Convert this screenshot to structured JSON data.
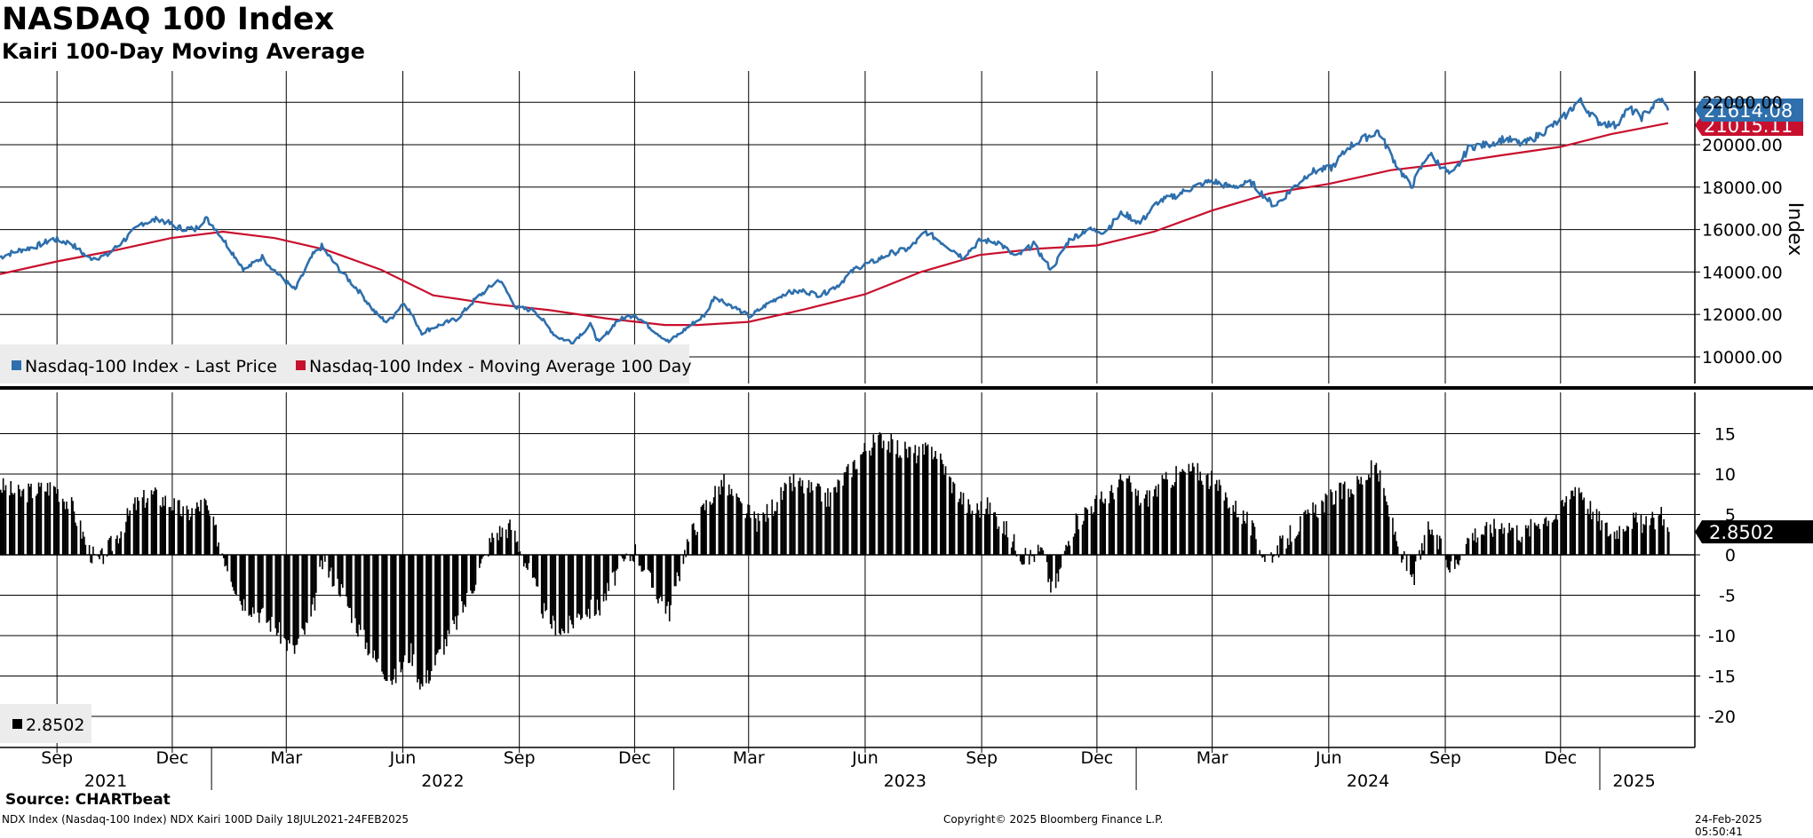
{
  "header": {
    "title": "NASDAQ 100 Index",
    "subtitle": "Kairi 100-Day Moving Average"
  },
  "footer": {
    "source": "Source: CHARTbeat",
    "description": "NDX Index (Nasdaq-100 Index) NDX Kairi 100D  Daily 18JUL2021-24FEB2025",
    "copyright": "Copyright© 2025 Bloomberg Finance L.P.",
    "timestamp": "24-Feb-2025 05:50:41"
  },
  "colors": {
    "price": "#2e6fac",
    "moving_average": "#c8102e",
    "histogram": "#000000",
    "grid": "#000000"
  },
  "chart_data": [
    {
      "type": "line",
      "panel": "upper",
      "ylabel": "Index",
      "ylim": [
        8500,
        22500
      ],
      "y_ticks": [
        "10000.00",
        "12000.00",
        "14000.00",
        "16000.00",
        "18000.00",
        "20000.00",
        "22000.00"
      ],
      "grid": true,
      "legend_placement": "bottom-left",
      "legend": [
        "Nasdaq-100 Index - Last Price",
        "Nasdaq-100 Index - Moving Average 100 Day"
      ],
      "last_value_labels": [
        "21614.08",
        "21015.11"
      ],
      "series": [
        {
          "name": "Nasdaq-100 Index - Last Price",
          "points": [
            [
              "2021-07-18",
              14700
            ],
            [
              "2021-08-01",
              15000
            ],
            [
              "2021-08-15",
              15200
            ],
            [
              "2021-08-29",
              15550
            ],
            [
              "2021-09-12",
              15350
            ],
            [
              "2021-09-26",
              14650
            ],
            [
              "2021-10-10",
              14750
            ],
            [
              "2021-10-24",
              15500
            ],
            [
              "2021-11-07",
              16300
            ],
            [
              "2021-11-21",
              16500
            ],
            [
              "2021-12-05",
              16100
            ],
            [
              "2021-12-19",
              16000
            ],
            [
              "2021-12-27",
              16550
            ],
            [
              "2022-01-05",
              16000
            ],
            [
              "2022-01-20",
              14700
            ],
            [
              "2022-01-27",
              14100
            ],
            [
              "2022-02-10",
              14700
            ],
            [
              "2022-02-24",
              13800
            ],
            [
              "2022-03-08",
              13150
            ],
            [
              "2022-03-22",
              14800
            ],
            [
              "2022-03-29",
              15200
            ],
            [
              "2022-04-12",
              14100
            ],
            [
              "2022-04-26",
              13200
            ],
            [
              "2022-05-10",
              12100
            ],
            [
              "2022-05-20",
              11600
            ],
            [
              "2022-06-02",
              12600
            ],
            [
              "2022-06-16",
              11150
            ],
            [
              "2022-06-30",
              11500
            ],
            [
              "2022-07-14",
              11800
            ],
            [
              "2022-07-28",
              12700
            ],
            [
              "2022-08-16",
              13650
            ],
            [
              "2022-08-30",
              12300
            ],
            [
              "2022-09-13",
              12200
            ],
            [
              "2022-09-30",
              10950
            ],
            [
              "2022-10-13",
              10700
            ],
            [
              "2022-10-27",
              11500
            ],
            [
              "2022-11-03",
              10650
            ],
            [
              "2022-11-17",
              11700
            ],
            [
              "2022-12-01",
              12000
            ],
            [
              "2022-12-15",
              11300
            ],
            [
              "2022-12-28",
              10700
            ],
            [
              "2023-01-12",
              11400
            ],
            [
              "2023-01-26",
              12000
            ],
            [
              "2023-02-02",
              12850
            ],
            [
              "2023-02-16",
              12400
            ],
            [
              "2023-03-02",
              11900
            ],
            [
              "2023-03-16",
              12500
            ],
            [
              "2023-03-30",
              13000
            ],
            [
              "2023-04-13",
              13100
            ],
            [
              "2023-04-27",
              12900
            ],
            [
              "2023-05-11",
              13400
            ],
            [
              "2023-05-25",
              14200
            ],
            [
              "2023-06-08",
              14500
            ],
            [
              "2023-06-22",
              14900
            ],
            [
              "2023-07-06",
              15100
            ],
            [
              "2023-07-19",
              15900
            ],
            [
              "2023-08-03",
              15300
            ],
            [
              "2023-08-17",
              14700
            ],
            [
              "2023-08-31",
              15500
            ],
            [
              "2023-09-14",
              15400
            ],
            [
              "2023-09-28",
              14700
            ],
            [
              "2023-10-12",
              15300
            ],
            [
              "2023-10-26",
              14100
            ],
            [
              "2023-11-09",
              15500
            ],
            [
              "2023-11-23",
              16000
            ],
            [
              "2023-12-07",
              15900
            ],
            [
              "2023-12-21",
              16800
            ],
            [
              "2024-01-04",
              16300
            ],
            [
              "2024-01-18",
              17300
            ],
            [
              "2024-02-01",
              17600
            ],
            [
              "2024-02-15",
              18000
            ],
            [
              "2024-03-01",
              18300
            ],
            [
              "2024-03-15",
              18000
            ],
            [
              "2024-04-01",
              18200
            ],
            [
              "2024-04-19",
              17100
            ],
            [
              "2024-05-03",
              17900
            ],
            [
              "2024-05-17",
              18700
            ],
            [
              "2024-06-03",
              18900
            ],
            [
              "2024-06-17",
              19900
            ],
            [
              "2024-07-10",
              20650
            ],
            [
              "2024-07-25",
              19000
            ],
            [
              "2024-08-05",
              18000
            ],
            [
              "2024-08-19",
              19600
            ],
            [
              "2024-09-06",
              18500
            ],
            [
              "2024-09-20",
              19900
            ],
            [
              "2024-10-04",
              20000
            ],
            [
              "2024-10-18",
              20300
            ],
            [
              "2024-11-01",
              20000
            ],
            [
              "2024-11-15",
              20500
            ],
            [
              "2024-12-02",
              21200
            ],
            [
              "2024-12-16",
              22100
            ],
            [
              "2024-12-30",
              21100
            ],
            [
              "2025-01-13",
              20900
            ],
            [
              "2025-01-24",
              21700
            ],
            [
              "2025-02-03",
              21300
            ],
            [
              "2025-02-18",
              22150
            ],
            [
              "2025-02-24",
              21614
            ]
          ]
        },
        {
          "name": "Nasdaq-100 Index - Moving Average 100 Day",
          "points": [
            [
              "2021-07-18",
              13900
            ],
            [
              "2021-09-01",
              14500
            ],
            [
              "2021-10-15",
              15000
            ],
            [
              "2021-11-30",
              15600
            ],
            [
              "2022-01-10",
              15900
            ],
            [
              "2022-02-20",
              15600
            ],
            [
              "2022-04-01",
              15050
            ],
            [
              "2022-05-15",
              14100
            ],
            [
              "2022-06-25",
              12900
            ],
            [
              "2022-08-10",
              12500
            ],
            [
              "2022-09-25",
              12200
            ],
            [
              "2022-11-10",
              11800
            ],
            [
              "2022-12-25",
              11500
            ],
            [
              "2023-01-20",
              11500
            ],
            [
              "2023-03-01",
              11650
            ],
            [
              "2023-04-15",
              12250
            ],
            [
              "2023-06-01",
              12950
            ],
            [
              "2023-07-15",
              14000
            ],
            [
              "2023-08-30",
              14800
            ],
            [
              "2023-10-15",
              15100
            ],
            [
              "2023-12-01",
              15250
            ],
            [
              "2024-01-15",
              15900
            ],
            [
              "2024-03-01",
              16900
            ],
            [
              "2024-04-15",
              17700
            ],
            [
              "2024-06-01",
              18150
            ],
            [
              "2024-07-20",
              18800
            ],
            [
              "2024-09-01",
              19100
            ],
            [
              "2024-10-15",
              19500
            ],
            [
              "2024-12-01",
              19900
            ],
            [
              "2025-01-10",
              20500
            ],
            [
              "2025-02-24",
              21015
            ]
          ]
        }
      ]
    },
    {
      "type": "bar",
      "panel": "lower",
      "name": "NDX Kairi 100D",
      "ylim": [
        -22,
        19
      ],
      "y_ticks": [
        "-20",
        "-15",
        "-10",
        "-5",
        "0",
        "5",
        "10",
        "15"
      ],
      "grid": true,
      "legend_placement": "bottom-left",
      "legend": [
        "2.8502"
      ],
      "last_value_label": "2.8502",
      "points": [
        [
          "2021-07-18",
          8.5
        ],
        [
          "2021-08-01",
          7.5
        ],
        [
          "2021-08-15",
          8.0
        ],
        [
          "2021-08-29",
          8.5
        ],
        [
          "2021-09-12",
          6.0
        ],
        [
          "2021-09-26",
          0.5
        ],
        [
          "2021-10-03",
          -1.0
        ],
        [
          "2021-10-17",
          2.0
        ],
        [
          "2021-10-31",
          6.0
        ],
        [
          "2021-11-14",
          7.5
        ],
        [
          "2021-11-28",
          6.5
        ],
        [
          "2021-12-12",
          5.0
        ],
        [
          "2021-12-26",
          6.5
        ],
        [
          "2022-01-09",
          0.5
        ],
        [
          "2022-01-23",
          -5.5
        ],
        [
          "2022-02-06",
          -7.0
        ],
        [
          "2022-02-20",
          -9.0
        ],
        [
          "2022-03-06",
          -12.0
        ],
        [
          "2022-03-20",
          -8.0
        ],
        [
          "2022-03-29",
          -1.0
        ],
        [
          "2022-04-12",
          -4.0
        ],
        [
          "2022-04-26",
          -9.0
        ],
        [
          "2022-05-10",
          -13.0
        ],
        [
          "2022-05-24",
          -15.5
        ],
        [
          "2022-06-07",
          -12.0
        ],
        [
          "2022-06-16",
          -16.5
        ],
        [
          "2022-06-30",
          -12.0
        ],
        [
          "2022-07-14",
          -8.0
        ],
        [
          "2022-07-28",
          -3.0
        ],
        [
          "2022-08-11",
          2.5
        ],
        [
          "2022-08-25",
          3.5
        ],
        [
          "2022-09-08",
          -2.0
        ],
        [
          "2022-09-22",
          -8.0
        ],
        [
          "2022-10-06",
          -9.5
        ],
        [
          "2022-10-20",
          -7.0
        ],
        [
          "2022-11-03",
          -6.5
        ],
        [
          "2022-11-17",
          -2.0
        ],
        [
          "2022-12-01",
          0.5
        ],
        [
          "2022-12-15",
          -4.0
        ],
        [
          "2022-12-28",
          -7.0
        ],
        [
          "2023-01-11",
          1.5
        ],
        [
          "2023-01-25",
          6.0
        ],
        [
          "2023-02-08",
          9.0
        ],
        [
          "2023-02-22",
          6.0
        ],
        [
          "2023-03-08",
          4.0
        ],
        [
          "2023-03-22",
          6.5
        ],
        [
          "2023-04-05",
          9.0
        ],
        [
          "2023-04-19",
          8.0
        ],
        [
          "2023-05-03",
          7.0
        ],
        [
          "2023-05-17",
          10.0
        ],
        [
          "2023-05-31",
          13.0
        ],
        [
          "2023-06-14",
          14.5
        ],
        [
          "2023-06-28",
          13.0
        ],
        [
          "2023-07-12",
          12.5
        ],
        [
          "2023-07-26",
          13.0
        ],
        [
          "2023-08-09",
          8.5
        ],
        [
          "2023-08-23",
          5.5
        ],
        [
          "2023-09-06",
          6.0
        ],
        [
          "2023-09-20",
          3.0
        ],
        [
          "2023-10-04",
          -0.5
        ],
        [
          "2023-10-18",
          0.5
        ],
        [
          "2023-10-27",
          -5.0
        ],
        [
          "2023-11-10",
          3.0
        ],
        [
          "2023-11-24",
          6.0
        ],
        [
          "2023-12-08",
          7.0
        ],
        [
          "2023-12-22",
          9.5
        ],
        [
          "2024-01-05",
          6.5
        ],
        [
          "2024-01-19",
          8.5
        ],
        [
          "2024-02-02",
          10.0
        ],
        [
          "2024-02-16",
          10.5
        ],
        [
          "2024-03-01",
          9.0
        ],
        [
          "2024-03-15",
          6.5
        ],
        [
          "2024-03-29",
          4.0
        ],
        [
          "2024-04-12",
          -0.5
        ],
        [
          "2024-04-26",
          1.5
        ],
        [
          "2024-05-10",
          4.0
        ],
        [
          "2024-05-24",
          6.0
        ],
        [
          "2024-06-07",
          7.5
        ],
        [
          "2024-06-21",
          8.5
        ],
        [
          "2024-07-08",
          11.0
        ],
        [
          "2024-07-22",
          3.0
        ],
        [
          "2024-08-05",
          -3.5
        ],
        [
          "2024-08-19",
          3.5
        ],
        [
          "2024-09-06",
          -2.0
        ],
        [
          "2024-09-20",
          2.5
        ],
        [
          "2024-10-04",
          3.0
        ],
        [
          "2024-10-18",
          4.0
        ],
        [
          "2024-11-01",
          2.5
        ],
        [
          "2024-11-15",
          4.5
        ],
        [
          "2024-11-29",
          5.0
        ],
        [
          "2024-12-13",
          9.0
        ],
        [
          "2024-12-27",
          5.0
        ],
        [
          "2025-01-10",
          2.5
        ],
        [
          "2025-01-24",
          4.5
        ],
        [
          "2025-02-07",
          3.5
        ],
        [
          "2025-02-18",
          5.0
        ],
        [
          "2025-02-24",
          2.85
        ]
      ]
    }
  ],
  "x_axis": {
    "start": "2021-07-18",
    "end": "2025-02-24",
    "month_ticks": [
      {
        "date": "2021-09-01",
        "label": "Sep"
      },
      {
        "date": "2021-12-01",
        "label": "Dec"
      },
      {
        "date": "2022-03-01",
        "label": "Mar"
      },
      {
        "date": "2022-06-01",
        "label": "Jun"
      },
      {
        "date": "2022-09-01",
        "label": "Sep"
      },
      {
        "date": "2022-12-01",
        "label": "Dec"
      },
      {
        "date": "2023-03-01",
        "label": "Mar"
      },
      {
        "date": "2023-06-01",
        "label": "Jun"
      },
      {
        "date": "2023-09-01",
        "label": "Sep"
      },
      {
        "date": "2023-12-01",
        "label": "Dec"
      },
      {
        "date": "2024-03-01",
        "label": "Mar"
      },
      {
        "date": "2024-06-01",
        "label": "Jun"
      },
      {
        "date": "2024-09-01",
        "label": "Sep"
      },
      {
        "date": "2024-12-01",
        "label": "Dec"
      }
    ],
    "year_labels": [
      {
        "label": "2021",
        "from": "2021-07-18",
        "to": "2022-01-01"
      },
      {
        "label": "2022",
        "from": "2022-01-01",
        "to": "2023-01-01"
      },
      {
        "label": "2023",
        "from": "2023-01-01",
        "to": "2024-01-01"
      },
      {
        "label": "2024",
        "from": "2024-01-01",
        "to": "2025-01-01"
      },
      {
        "label": "2025",
        "from": "2025-01-01",
        "to": "2025-02-24"
      }
    ]
  }
}
